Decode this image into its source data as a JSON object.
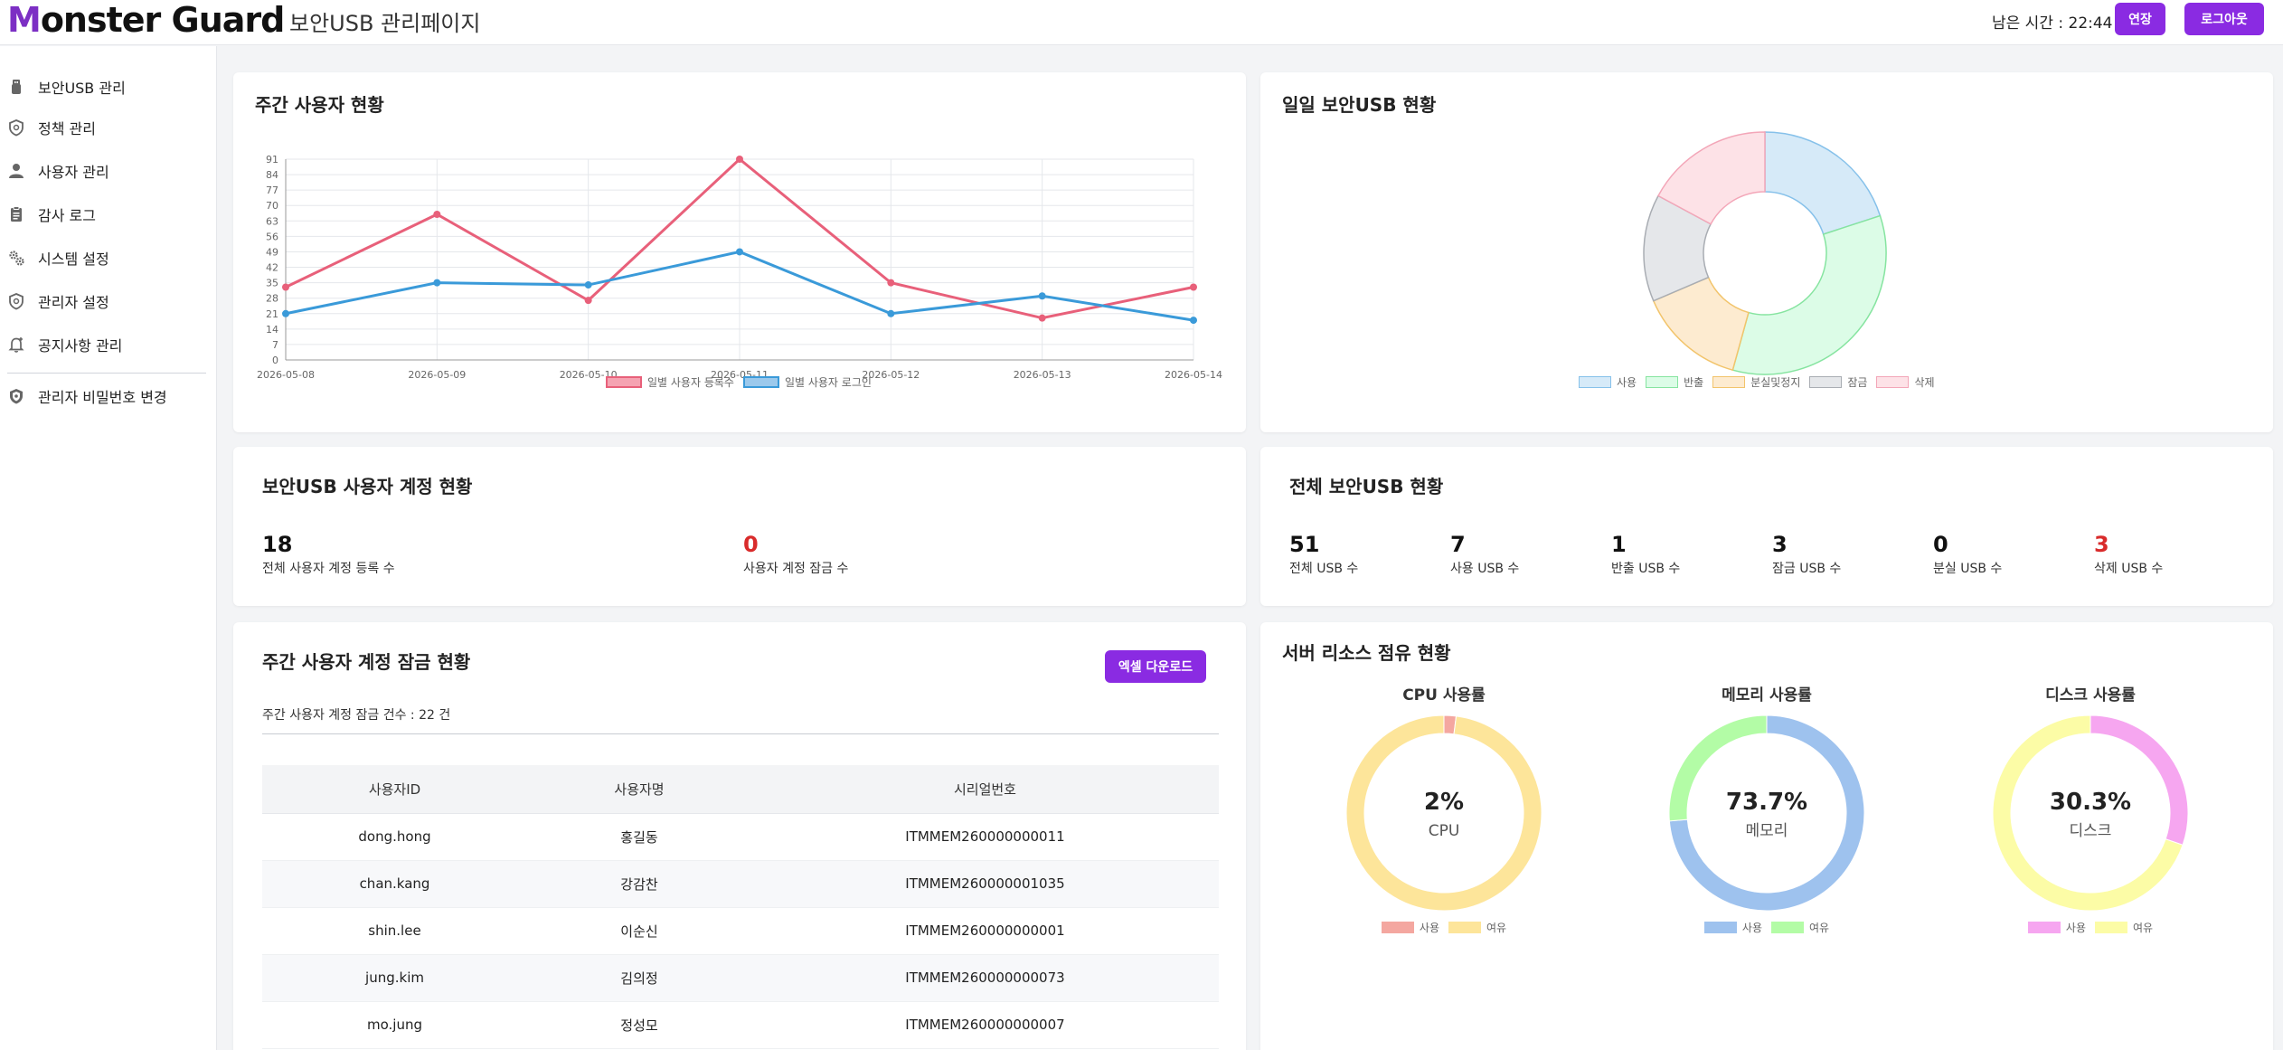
{
  "header": {
    "logo_text": "Monster Guard",
    "title": "보안USB 관리페이지",
    "timer_label": "남은 시간 : 22:44",
    "extend_label": "연장",
    "logout_label": "로그아웃",
    "accent_color": "#8a2be2"
  },
  "sidebar": {
    "items": [
      {
        "label": "보안USB 관리",
        "icon": "usb-icon"
      },
      {
        "label": "정책 관리",
        "icon": "shield-icon"
      },
      {
        "label": "사용자 관리",
        "icon": "user-icon"
      },
      {
        "label": "감사 로그",
        "icon": "clipboard-icon"
      },
      {
        "label": "시스템 설정",
        "icon": "gears-icon"
      },
      {
        "label": "관리자 설정",
        "icon": "shield-icon"
      },
      {
        "label": "공지사항 관리",
        "icon": "bell-icon"
      }
    ],
    "footer_item": {
      "label": "관리자 비밀번호 변경",
      "icon": "shield-check-icon"
    }
  },
  "weekly_users": {
    "title": "주간 사용자 현황"
  },
  "daily_usb": {
    "title": "일일 보안USB 현황"
  },
  "accounts": {
    "title": "보안USB 사용자 계정 현황",
    "stats": [
      {
        "value": "18",
        "label": "전체 사용자 계정 등록 수",
        "color": "#111111"
      },
      {
        "value": "0",
        "label": "사용자 계정 잠금 수",
        "color": "#d92b2b"
      }
    ]
  },
  "usb_totals": {
    "title": "전체 보안USB 현황",
    "stats": [
      {
        "value": "51",
        "label": "전체 USB 수",
        "color": "#111111"
      },
      {
        "value": "7",
        "label": "사용 USB 수",
        "color": "#111111"
      },
      {
        "value": "1",
        "label": "반출 USB 수",
        "color": "#111111"
      },
      {
        "value": "3",
        "label": "잠금 USB 수",
        "color": "#111111"
      },
      {
        "value": "0",
        "label": "분실 USB 수",
        "color": "#111111"
      },
      {
        "value": "3",
        "label": "삭제 USB 수",
        "color": "#d92b2b"
      }
    ]
  },
  "lock_table": {
    "title": "주간 사용자 계정 잠금 현황",
    "excel_label": "엑셀 다운로드",
    "summary": "주간 사용자 계정 잠금 건수 : 22 건",
    "columns": [
      "사용자ID",
      "사용자명",
      "시리얼번호"
    ],
    "rows": [
      [
        "dong.hong",
        "홍길동",
        "ITMMEM260000000011"
      ],
      [
        "chan.kang",
        "강감찬",
        "ITMMEM260000001035"
      ],
      [
        "shin.lee",
        "이순신",
        "ITMMEM260000000001"
      ],
      [
        "jung.kim",
        "김의정",
        "ITMMEM260000000073"
      ],
      [
        "mo.jung",
        "정성모",
        "ITMMEM260000000007"
      ]
    ]
  },
  "resources": {
    "title": "서버 리소스 점유 현황"
  },
  "chart_data": [
    {
      "type": "line",
      "title": "",
      "categories": [
        "2026-05-08",
        "2026-05-09",
        "2026-05-10",
        "2026-05-11",
        "2026-05-12",
        "2026-05-13",
        "2026-05-14"
      ],
      "yticks": [
        0,
        7,
        14,
        21,
        28,
        35,
        42,
        49,
        56,
        63,
        70,
        77,
        84,
        91
      ],
      "ylim": [
        0,
        91
      ],
      "grid": true,
      "legend": "bottom",
      "series": [
        {
          "name": "일별 사용자 등록수",
          "color": "#e8607a",
          "fill": "#f5a3b2",
          "values": [
            33,
            66,
            27,
            91,
            35,
            19,
            33
          ]
        },
        {
          "name": "일별 사용자 로그인",
          "color": "#3a9ad9",
          "fill": "#9cc9ec",
          "values": [
            21,
            35,
            34,
            49,
            21,
            29,
            18
          ]
        }
      ]
    },
    {
      "type": "pie",
      "title": "",
      "legend": "bottom",
      "labels": [
        "사용",
        "반출",
        "분실및정지",
        "잠금",
        "삭제"
      ],
      "values": [
        7,
        12,
        5,
        5,
        6
      ],
      "colors": [
        "#d6eaf8",
        "#dcfce7",
        "#fdebd0",
        "#e5e7ea",
        "#fde2e7"
      ],
      "borders": [
        "#86c1ea",
        "#86e4a0",
        "#f2c46b",
        "#a9adb3",
        "#f3a6b8"
      ]
    },
    {
      "type": "pie",
      "title": "CPU 사용률",
      "center_value": "2%",
      "center_label": "CPU",
      "labels": [
        "사용",
        "여유"
      ],
      "values": [
        2,
        98
      ],
      "colors": [
        "#f4a7a0",
        "#fde59a"
      ]
    },
    {
      "type": "pie",
      "title": "메모리 사용률",
      "center_value": "73.7%",
      "center_label": "메모리",
      "labels": [
        "사용",
        "여유"
      ],
      "values": [
        73.7,
        26.3
      ],
      "colors": [
        "#9ec2ee",
        "#b3fca6"
      ]
    },
    {
      "type": "pie",
      "title": "디스크 사용률",
      "center_value": "30.3%",
      "center_label": "디스크",
      "labels": [
        "사용",
        "여유"
      ],
      "values": [
        30.3,
        69.7
      ],
      "colors": [
        "#f6a6f0",
        "#fcfca6"
      ]
    }
  ]
}
